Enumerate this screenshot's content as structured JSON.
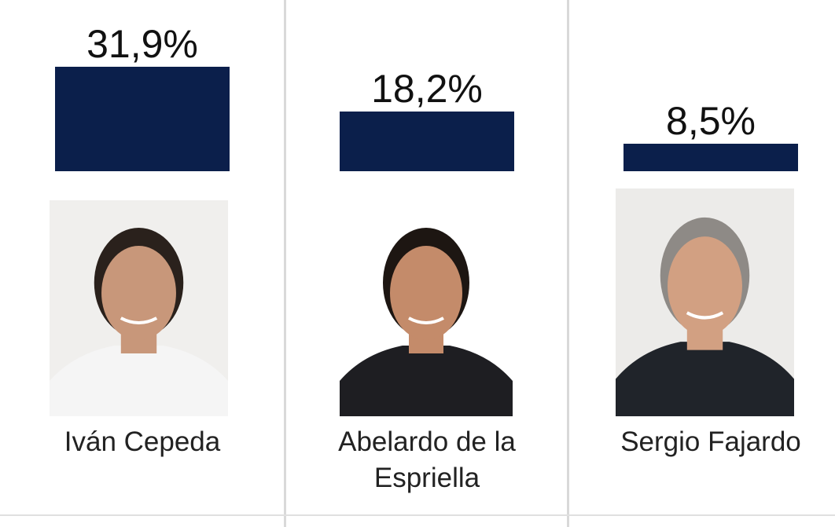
{
  "chart_data": {
    "type": "bar",
    "categories": [
      "Iván Cepeda",
      "Abelardo de la Espriella",
      "Sergio Fajardo"
    ],
    "values": [
      31.9,
      18.2,
      8.5
    ],
    "value_labels": [
      "31,9%",
      "18,2%",
      "8,5%"
    ],
    "bar_color": "#0b1f4b",
    "title": "",
    "xlabel": "",
    "ylabel": ""
  },
  "candidates": [
    {
      "name": "Iván Cepeda",
      "photo_icon": "person-photo",
      "bg": "#f0efed",
      "skin": "#c8977a",
      "hair": "#2a211c",
      "shirt": "#f5f5f5"
    },
    {
      "name": "Abelardo de la Espriella",
      "photo_icon": "person-photo",
      "bg": "#ffffff",
      "skin": "#c48b6a",
      "hair": "#1d1612",
      "shirt": "#1e1e22"
    },
    {
      "name": "Sergio Fajardo",
      "photo_icon": "person-photo",
      "bg": "#ecebe9",
      "skin": "#d2a082",
      "hair": "#8e8a86",
      "shirt": "#20242a"
    }
  ]
}
